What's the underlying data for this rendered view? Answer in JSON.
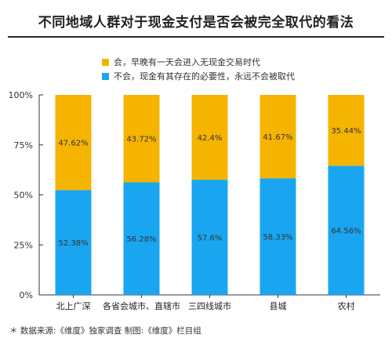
{
  "title": "不同地域人群对于现金支付是否会被完全取代的看法",
  "legend": {
    "items": [
      {
        "label": "会，早晚有一天会进入无现金交易时代",
        "color": "#f5b400"
      },
      {
        "label": "不会，现金有其存在的必要性，永远不会被取代",
        "color": "#1aa5f0"
      }
    ]
  },
  "footnote": "＊ 数据来源:《维度》独家调查   制图:《维度》栏目组",
  "chart_data": {
    "type": "bar",
    "stacked": true,
    "title": "不同地域人群对于现金支付是否会被完全取代的看法",
    "categories": [
      "北上广深",
      "各省会城市、直辖市",
      "三四线城市",
      "县城",
      "农村"
    ],
    "series": [
      {
        "name": "不会，现金有其存在的必要性，永远不会被取代",
        "color": "#1aa5f0",
        "values": [
          52.38,
          56.28,
          57.6,
          58.33,
          64.56
        ],
        "labels": [
          "52.38%",
          "56.28%",
          "57.6%",
          "58.33%",
          "64.56%"
        ]
      },
      {
        "name": "会，早晚有一天会进入无现金交易时代",
        "color": "#f5b400",
        "values": [
          47.62,
          43.72,
          42.4,
          41.67,
          35.44
        ],
        "labels": [
          "47.62%",
          "43.72%",
          "42.4%",
          "41.67%",
          "35.44%"
        ]
      }
    ],
    "yticks": [
      "0%",
      "25%",
      "50%",
      "75%",
      "100%"
    ],
    "ylim": [
      0,
      100
    ],
    "legend_position": "top-left"
  }
}
